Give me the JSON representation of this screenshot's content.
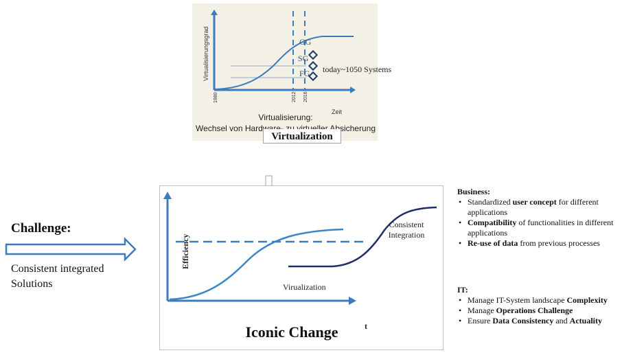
{
  "top_figure": {
    "y_axis_label": "Virtualisierungsgrad",
    "x_axis_label": "Zeit",
    "ticks": [
      "1980",
      "2012",
      "2016"
    ],
    "levels": [
      "GG",
      "SG",
      "FG"
    ],
    "note": "today~1050 Systems",
    "caption_line1": "Virtualisierung:",
    "caption_line2": "Wechsel von Hardware- zu virtueller Absicherung",
    "title": "Virtualization",
    "colors": {
      "curve": "#3d7bbf",
      "dashed": "#3d7bbf",
      "diamond": "#1f3a6b"
    }
  },
  "main_figure": {
    "y_axis_label": "Efficiency",
    "curve1_label": "Virualization",
    "curve2_label_line1": "Consistent",
    "curve2_label_line2": "Integration",
    "title": "Iconic Change",
    "x_axis_label": "t",
    "colors": {
      "axis": "#3d7bbf",
      "curve1": "#3d86c6",
      "curve2": "#1f2f66"
    }
  },
  "challenge": {
    "title": "Challenge:",
    "text_line1": "Consistent integrated",
    "text_line2": "Solutions",
    "arrow_color": "#3d7bbf"
  },
  "business": {
    "heading": "Business:",
    "items": [
      {
        "pre": "Standardized ",
        "bold": "user concept",
        "post": " for different applications"
      },
      {
        "pre": "",
        "bold": "Compatibility",
        "post": " of functionalities in different applications"
      },
      {
        "pre": "",
        "bold": "Re-use of data",
        "post": " from previous processes"
      }
    ]
  },
  "it": {
    "heading": "IT:",
    "items": [
      {
        "pre": "Manage IT-System landscape ",
        "bold": "Complexity",
        "post": "",
        "bold2": ""
      },
      {
        "pre": "Manage ",
        "bold": "Operations Challenge",
        "post": "",
        "bold2": ""
      },
      {
        "pre": "Ensure ",
        "bold": "Data Consistency",
        "post": " and ",
        "bold2": "Actuality"
      }
    ]
  }
}
